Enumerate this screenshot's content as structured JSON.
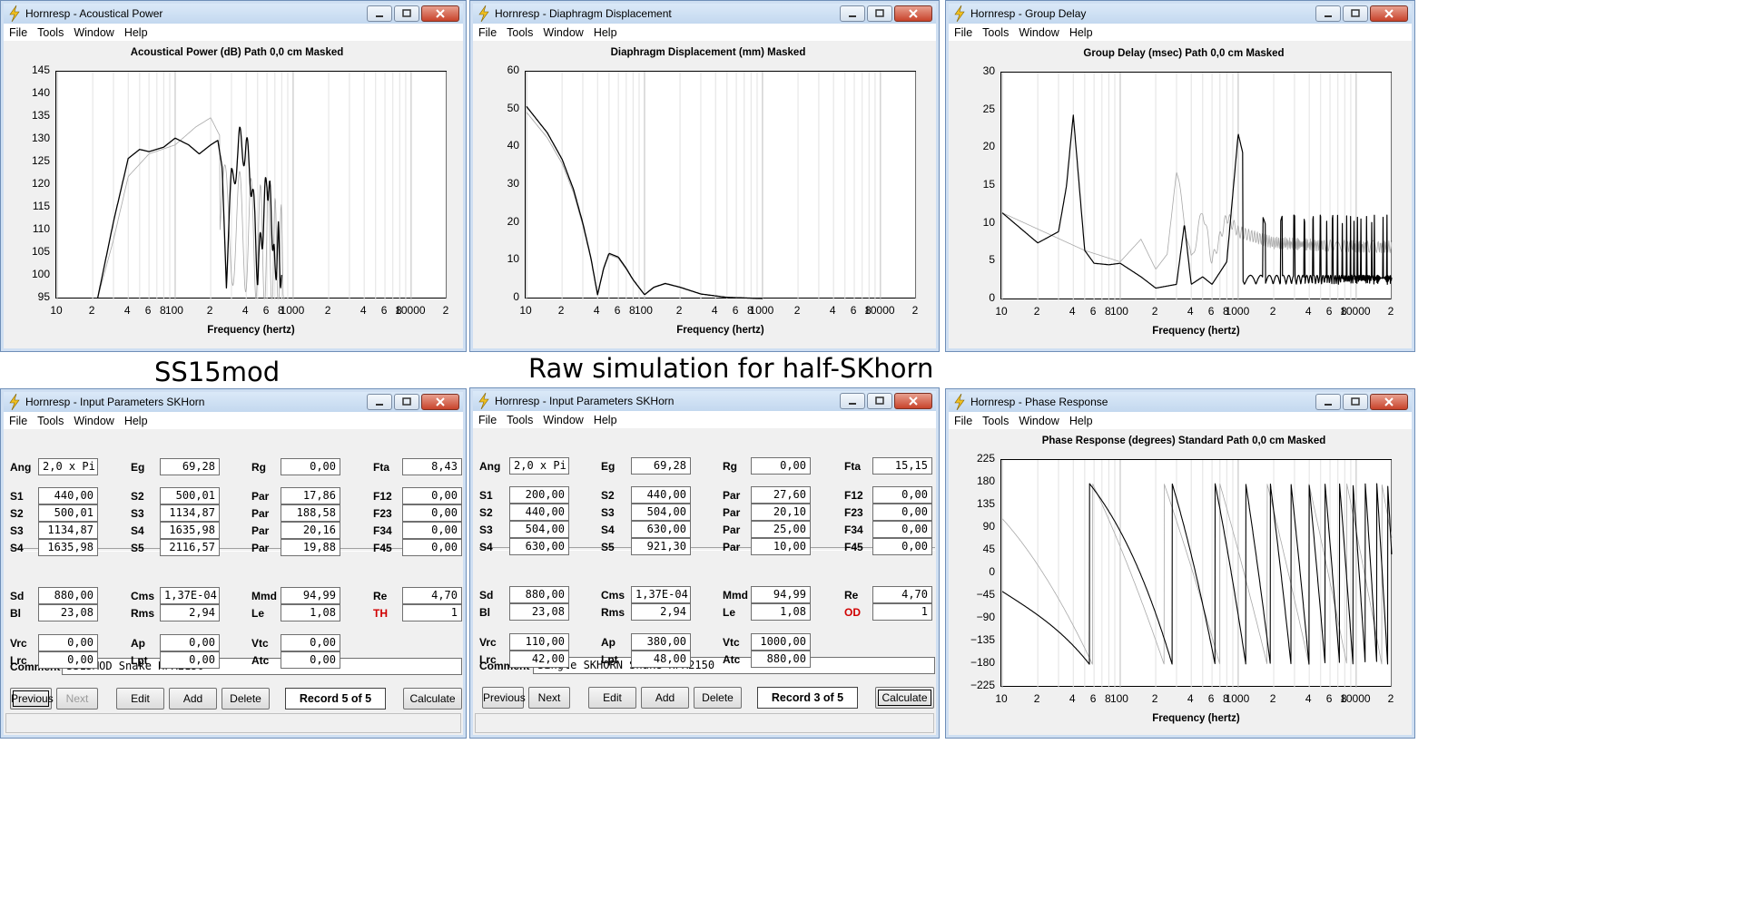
{
  "menu": [
    "File",
    "Tools",
    "Window",
    "Help"
  ],
  "captions": {
    "left": "SS15mod",
    "center": "Raw simulation for half-SKhorn"
  },
  "charts": {
    "acoustical": {
      "window_title": "Hornresp - Acoustical Power",
      "title": "Acoustical Power (dB)   Path 0,0 cm   Masked",
      "yticks": [
        "145",
        "140",
        "135",
        "130",
        "125",
        "120",
        "115",
        "110",
        "105",
        "100",
        "95"
      ],
      "xticks": [
        "10",
        "2",
        "4",
        "6",
        "8",
        "100",
        "2",
        "4",
        "6",
        "8",
        "1000",
        "2",
        "4",
        "6",
        "8",
        "10000",
        "2"
      ],
      "xlabel": "Frequency (hertz)"
    },
    "displacement": {
      "window_title": "Hornresp - Diaphragm Displacement",
      "title": "Diaphragm Displacement (mm)   Masked",
      "yticks": [
        "60",
        "50",
        "40",
        "30",
        "20",
        "10",
        "0"
      ],
      "xticks": [
        "10",
        "2",
        "4",
        "6",
        "8",
        "100",
        "2",
        "4",
        "6",
        "8",
        "1000",
        "2",
        "4",
        "6",
        "8",
        "10000",
        "2"
      ],
      "xlabel": "Frequency (hertz)"
    },
    "group_delay": {
      "window_title": "Hornresp - Group Delay",
      "title": "Group Delay (msec)   Path 0,0 cm   Masked",
      "yticks": [
        "30",
        "25",
        "20",
        "15",
        "10",
        "5",
        "0"
      ],
      "xticks": [
        "10",
        "2",
        "4",
        "6",
        "8",
        "100",
        "2",
        "4",
        "6",
        "8",
        "1000",
        "2",
        "4",
        "6",
        "8",
        "10000",
        "2"
      ],
      "xlabel": "Frequency (hertz)"
    },
    "phase": {
      "window_title": "Hornresp - Phase Response",
      "title": "Phase Response (degrees)   Standard   Path 0,0 cm   Masked",
      "yticks": [
        "225",
        "180",
        "135",
        "90",
        "45",
        "0",
        "−45",
        "−90",
        "−135",
        "−180",
        "−225"
      ],
      "xticks": [
        "10",
        "2",
        "4",
        "6",
        "8",
        "100",
        "2",
        "4",
        "6",
        "8",
        "1000",
        "2",
        "4",
        "6",
        "8",
        "10000",
        "2"
      ],
      "xlabel": "Frequency (hertz)"
    }
  },
  "chart_data": [
    {
      "type": "line",
      "title": "Acoustical Power (dB)   Path 0,0 cm   Masked",
      "xlabel": "Frequency (hertz)",
      "ylabel": "",
      "xscale": "log",
      "xlim": [
        10,
        20000
      ],
      "ylim": [
        95,
        145
      ],
      "series": [
        {
          "x": [
            22,
            30,
            40,
            50,
            60,
            80,
            100,
            130,
            160,
            200,
            230,
            250,
            270,
            300,
            350,
            400,
            450,
            500,
            550,
            600,
            650,
            700,
            750,
            800
          ],
          "values": [
            95,
            112,
            126,
            128,
            127.5,
            128.5,
            130.5,
            129,
            127,
            129,
            130,
            124,
            100,
            120,
            129,
            128,
            120,
            101,
            110,
            122,
            115,
            100,
            108,
            97
          ]
        }
      ]
    },
    {
      "type": "line",
      "title": "Diaphragm Displacement (mm)   Masked",
      "xlabel": "Frequency (hertz)",
      "ylabel": "",
      "xscale": "log",
      "xlim": [
        10,
        20000
      ],
      "ylim": [
        0,
        60
      ],
      "series": [
        {
          "x": [
            10,
            15,
            20,
            25,
            30,
            35,
            40,
            45,
            50,
            60,
            70,
            80,
            100,
            120,
            150,
            200,
            300,
            500,
            800,
            1000
          ],
          "values": [
            51,
            44,
            37,
            29,
            20,
            11,
            1,
            8,
            12,
            11,
            8,
            5,
            1,
            3,
            4,
            3,
            1.2,
            0.3,
            0.1,
            0
          ]
        }
      ]
    },
    {
      "type": "line",
      "title": "Group Delay (msec)   Path 0,0 cm   Masked",
      "xlabel": "Frequency (hertz)",
      "ylabel": "",
      "xscale": "log",
      "xlim": [
        10,
        20000
      ],
      "ylim": [
        0,
        30
      ],
      "series": [
        {
          "x": [
            10,
            20,
            30,
            35,
            40,
            45,
            50,
            60,
            80,
            100,
            150,
            200,
            300,
            350,
            400,
            500,
            600,
            800,
            1000,
            2000,
            4000,
            10000,
            20000
          ],
          "values": [
            11.5,
            7.5,
            9,
            15,
            24.5,
            15,
            6.5,
            4.8,
            4.6,
            4.8,
            3,
            1.5,
            2,
            10,
            2,
            3,
            2,
            5,
            22,
            2,
            4,
            3,
            1.5
          ]
        },
        {
          "x": [
            10,
            50,
            100,
            150,
            200,
            250,
            300,
            400,
            500,
            600,
            800,
            1000,
            2000,
            5000,
            10000,
            20000
          ],
          "values": [
            11.5,
            6.5,
            5,
            8,
            4,
            6,
            17,
            5,
            12,
            5,
            11,
            9,
            7.5,
            7.2,
            7,
            7
          ]
        }
      ]
    },
    {
      "type": "line",
      "title": "Phase Response (degrees)   Standard   Path 0,0 cm   Masked",
      "xlabel": "Frequency (hertz)",
      "ylabel": "",
      "xscale": "log",
      "xlim": [
        10,
        20000
      ],
      "ylim": [
        -225,
        225
      ],
      "series": [
        {
          "x": [
            10,
            20,
            30,
            40,
            45,
            60,
            80,
            100,
            150,
            200,
            300
          ],
          "values": [
            -35,
            -80,
            -130,
            -180,
            180,
            120,
            40,
            -20,
            -100,
            -150,
            -180
          ]
        },
        {
          "x": [
            10,
            20,
            30,
            40,
            60,
            80,
            100,
            130
          ],
          "values": [
            90,
            60,
            20,
            -30,
            -100,
            -150,
            -180,
            180
          ]
        }
      ]
    }
  ],
  "params": {
    "left": {
      "window_title": "Hornresp - Input Parameters   SKHorn",
      "rows": [
        [
          {
            "l": "Ang",
            "v": "2,0 x Pi",
            "left": true
          },
          {
            "l": "Eg",
            "v": "69,28"
          },
          {
            "l": "Rg",
            "v": "0,00"
          },
          {
            "l": "Fta",
            "v": "8,43"
          }
        ],
        [
          {
            "l": "S1",
            "v": "440,00"
          },
          {
            "l": "S2",
            "v": "500,01"
          },
          {
            "l": "Par",
            "v": "17,86"
          },
          {
            "l": "F12",
            "v": "0,00"
          }
        ],
        [
          {
            "l": "S2",
            "v": "500,01"
          },
          {
            "l": "S3",
            "v": "1134,87"
          },
          {
            "l": "Par",
            "v": "188,58"
          },
          {
            "l": "F23",
            "v": "0,00"
          }
        ],
        [
          {
            "l": "S3",
            "v": "1134,87"
          },
          {
            "l": "S4",
            "v": "1635,98"
          },
          {
            "l": "Par",
            "v": "20,16"
          },
          {
            "l": "F34",
            "v": "0,00"
          }
        ],
        [
          {
            "l": "S4",
            "v": "1635,98"
          },
          {
            "l": "S5",
            "v": "2116,57"
          },
          {
            "l": "Par",
            "v": "19,88"
          },
          {
            "l": "F45",
            "v": "0,00"
          }
        ],
        [
          {
            "l": "Sd",
            "v": "880,00"
          },
          {
            "l": "Cms",
            "v": "1,37E-04"
          },
          {
            "l": "Mmd",
            "v": "94,99"
          },
          {
            "l": "Re",
            "v": "4,70"
          }
        ],
        [
          {
            "l": "Bl",
            "v": "23,08"
          },
          {
            "l": "Rms",
            "v": "2,94"
          },
          {
            "l": "Le",
            "v": "1,08"
          },
          {
            "l": "TH",
            "v": "1",
            "red": true
          }
        ],
        [
          {
            "l": "Vrc",
            "v": "0,00"
          },
          {
            "l": "Ap",
            "v": "0,00"
          },
          {
            "l": "Vtc",
            "v": "0,00"
          },
          null
        ],
        [
          {
            "l": "Lrc",
            "v": "0,00"
          },
          {
            "l": "Lpt",
            "v": "0,00"
          },
          {
            "l": "Atc",
            "v": "0,00"
          },
          null
        ]
      ],
      "comment_label": "Comment",
      "comment": "SS15MOD Snake HPX2150",
      "buttons": {
        "previous": "Previous",
        "next": "Next",
        "edit": "Edit",
        "add": "Add",
        "delete": "Delete",
        "calculate": "Calculate"
      },
      "record": "Record 5 of 5"
    },
    "right": {
      "window_title": "Hornresp - Input Parameters   SKHorn",
      "rows": [
        [
          {
            "l": "Ang",
            "v": "2,0 x Pi",
            "left": true
          },
          {
            "l": "Eg",
            "v": "69,28"
          },
          {
            "l": "Rg",
            "v": "0,00"
          },
          {
            "l": "Fta",
            "v": "15,15"
          }
        ],
        [
          {
            "l": "S1",
            "v": "200,00"
          },
          {
            "l": "S2",
            "v": "440,00"
          },
          {
            "l": "Par",
            "v": "27,60"
          },
          {
            "l": "F12",
            "v": "0,00"
          }
        ],
        [
          {
            "l": "S2",
            "v": "440,00"
          },
          {
            "l": "S3",
            "v": "504,00"
          },
          {
            "l": "Par",
            "v": "20,10"
          },
          {
            "l": "F23",
            "v": "0,00"
          }
        ],
        [
          {
            "l": "S3",
            "v": "504,00"
          },
          {
            "l": "S4",
            "v": "630,00"
          },
          {
            "l": "Par",
            "v": "25,00"
          },
          {
            "l": "F34",
            "v": "0,00"
          }
        ],
        [
          {
            "l": "S4",
            "v": "630,00"
          },
          {
            "l": "S5",
            "v": "921,30"
          },
          {
            "l": "Par",
            "v": "10,00"
          },
          {
            "l": "F45",
            "v": "0,00"
          }
        ],
        [
          {
            "l": "Sd",
            "v": "880,00"
          },
          {
            "l": "Cms",
            "v": "1,37E-04"
          },
          {
            "l": "Mmd",
            "v": "94,99"
          },
          {
            "l": "Re",
            "v": "4,70"
          }
        ],
        [
          {
            "l": "Bl",
            "v": "23,08"
          },
          {
            "l": "Rms",
            "v": "2,94"
          },
          {
            "l": "Le",
            "v": "1,08"
          },
          {
            "l": "OD",
            "v": "1",
            "red": true
          }
        ],
        [
          {
            "l": "Vrc",
            "v": "110,00"
          },
          {
            "l": "Ap",
            "v": "380,00"
          },
          {
            "l": "Vtc",
            "v": "1000,00"
          },
          null
        ],
        [
          {
            "l": "Lrc",
            "v": "42,00"
          },
          {
            "l": "Lpt",
            "v": "48,00"
          },
          {
            "l": "Atc",
            "v": "880,00"
          },
          null
        ]
      ],
      "comment_label": "Comment",
      "comment": "Single SKHORN Snake HPX2150",
      "buttons": {
        "previous": "Previous",
        "next": "Next",
        "edit": "Edit",
        "add": "Add",
        "delete": "Delete",
        "calculate": "Calculate"
      },
      "record": "Record 3 of 5"
    }
  },
  "colors": {
    "titlebar": "#c3d8ef",
    "close": "#c8432b",
    "curve_main": "#000000",
    "curve_ghost": "#a8a8a8",
    "label_red": "#d00000"
  }
}
